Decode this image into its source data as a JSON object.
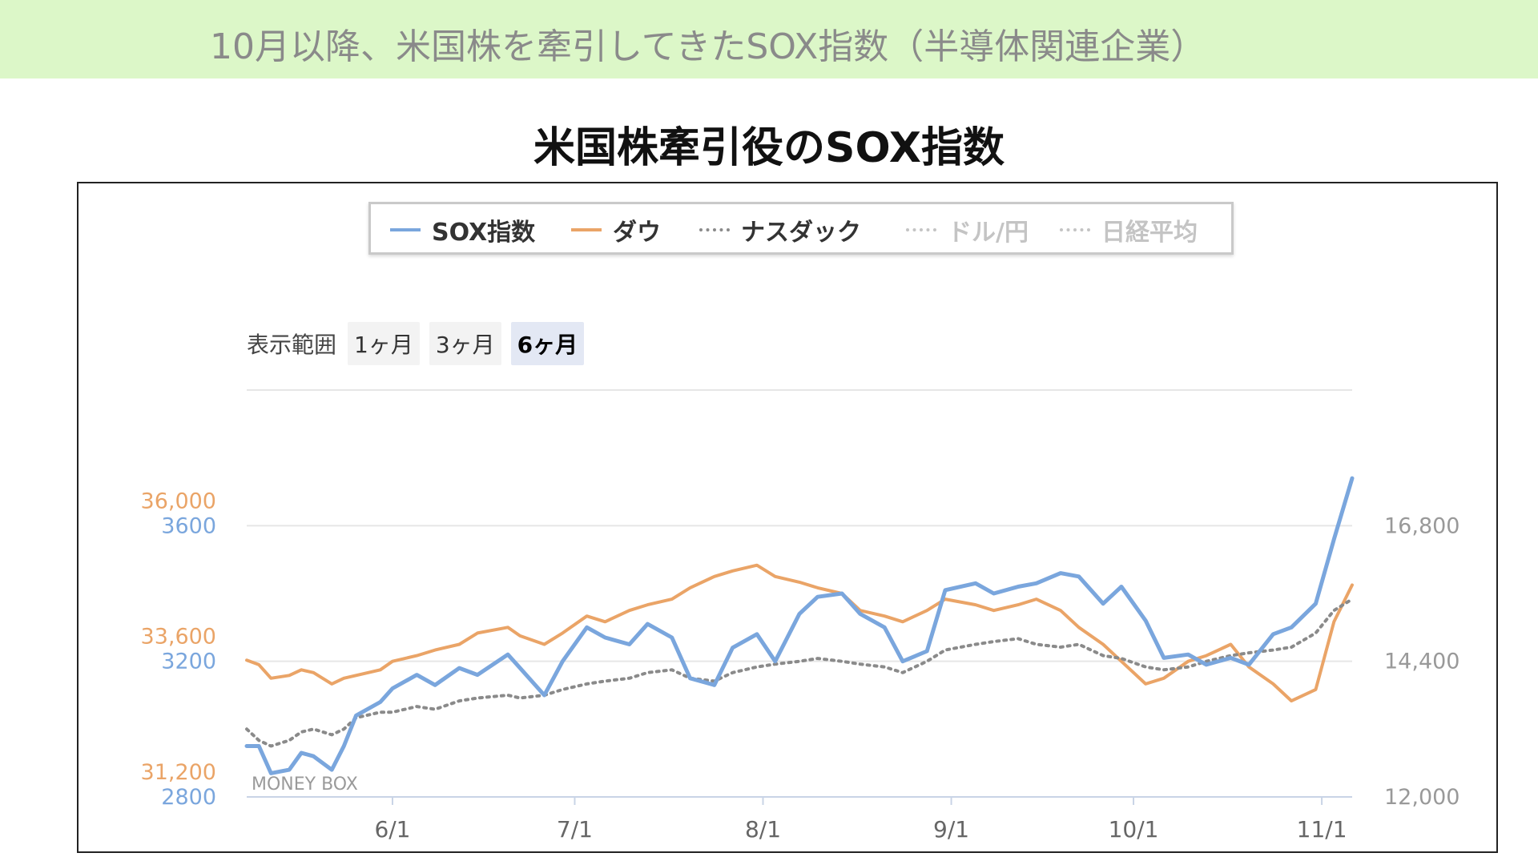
{
  "banner": {
    "text": "10月以降、米国株を牽引してきたSOX指数（半導体関連企業）"
  },
  "title": "米国株牽引役のSOX指数",
  "range_selector": {
    "label": "表示範囲",
    "buttons": [
      "1ヶ月",
      "3ヶ月",
      "6ヶ月"
    ],
    "selected": "6ヶ月"
  },
  "watermark": "MONEY BOX",
  "colors": {
    "sox": "#7aa6dd",
    "dow": "#eaa467",
    "nasdaq": "#8a8a8a",
    "disabled": "#bdbdbd",
    "banner_bg": "#dcf7c8"
  },
  "chart_data": {
    "type": "line",
    "legend": [
      {
        "name": "SOX指数",
        "style": "solid",
        "enabled": true
      },
      {
        "name": "ダウ",
        "style": "solid",
        "enabled": true
      },
      {
        "name": "ナスダック",
        "style": "dotted",
        "enabled": true
      },
      {
        "name": "ドル/円",
        "style": "dotted",
        "enabled": false
      },
      {
        "name": "日経平均",
        "style": "dotted",
        "enabled": false
      }
    ],
    "legend_position": "top-center",
    "x_range": [
      "2023-05-08",
      "2023-11-06"
    ],
    "x_ticks": [
      {
        "date": "2023-06-01",
        "label": "6/1"
      },
      {
        "date": "2023-07-01",
        "label": "7/1"
      },
      {
        "date": "2023-08-01",
        "label": "8/1"
      },
      {
        "date": "2023-09-01",
        "label": "9/1"
      },
      {
        "date": "2023-10-01",
        "label": "10/1"
      },
      {
        "date": "2023-11-01",
        "label": "11/1"
      }
    ],
    "y_axes": {
      "sox": {
        "ticks": [
          2800,
          3200,
          3600
        ],
        "range": [
          2800,
          4000
        ]
      },
      "dow": {
        "ticks": [
          "31,200",
          "33,600",
          "36,000"
        ],
        "range": [
          31200,
          38400
        ]
      },
      "nasdaq": {
        "ticks": [
          "12,000",
          "14,400",
          "16,800"
        ],
        "range": [
          12000,
          19200
        ]
      }
    },
    "grid": true,
    "series": [
      {
        "name": "SOX指数",
        "points": [
          [
            "2023-05-08",
            2950
          ],
          [
            "2023-05-10",
            2950
          ],
          [
            "2023-05-12",
            2870
          ],
          [
            "2023-05-15",
            2880
          ],
          [
            "2023-05-17",
            2930
          ],
          [
            "2023-05-19",
            2920
          ],
          [
            "2023-05-22",
            2880
          ],
          [
            "2023-05-24",
            2950
          ],
          [
            "2023-05-26",
            3040
          ],
          [
            "2023-05-30",
            3080
          ],
          [
            "2023-06-01",
            3120
          ],
          [
            "2023-06-05",
            3160
          ],
          [
            "2023-06-08",
            3130
          ],
          [
            "2023-06-12",
            3180
          ],
          [
            "2023-06-15",
            3160
          ],
          [
            "2023-06-20",
            3220
          ],
          [
            "2023-06-22",
            3180
          ],
          [
            "2023-06-26",
            3100
          ],
          [
            "2023-06-29",
            3200
          ],
          [
            "2023-07-03",
            3300
          ],
          [
            "2023-07-06",
            3270
          ],
          [
            "2023-07-10",
            3250
          ],
          [
            "2023-07-13",
            3310
          ],
          [
            "2023-07-17",
            3270
          ],
          [
            "2023-07-20",
            3150
          ],
          [
            "2023-07-24",
            3130
          ],
          [
            "2023-07-27",
            3240
          ],
          [
            "2023-07-31",
            3280
          ],
          [
            "2023-08-03",
            3200
          ],
          [
            "2023-08-07",
            3340
          ],
          [
            "2023-08-10",
            3390
          ],
          [
            "2023-08-14",
            3400
          ],
          [
            "2023-08-17",
            3340
          ],
          [
            "2023-08-21",
            3300
          ],
          [
            "2023-08-24",
            3200
          ],
          [
            "2023-08-28",
            3230
          ],
          [
            "2023-08-31",
            3410
          ],
          [
            "2023-09-05",
            3430
          ],
          [
            "2023-09-08",
            3400
          ],
          [
            "2023-09-12",
            3420
          ],
          [
            "2023-09-15",
            3430
          ],
          [
            "2023-09-19",
            3460
          ],
          [
            "2023-09-22",
            3450
          ],
          [
            "2023-09-26",
            3370
          ],
          [
            "2023-09-29",
            3420
          ],
          [
            "2023-10-03",
            3320
          ],
          [
            "2023-10-06",
            3210
          ],
          [
            "2023-10-10",
            3220
          ],
          [
            "2023-10-13",
            3190
          ],
          [
            "2023-10-17",
            3210
          ],
          [
            "2023-10-20",
            3190
          ],
          [
            "2023-10-24",
            3280
          ],
          [
            "2023-10-27",
            3300
          ],
          [
            "2023-10-31",
            3370
          ],
          [
            "2023-11-03",
            3560
          ],
          [
            "2023-11-06",
            3740
          ]
        ]
      },
      {
        "name": "ダウ",
        "points": [
          [
            "2023-05-08",
            33620
          ],
          [
            "2023-05-10",
            33540
          ],
          [
            "2023-05-12",
            33300
          ],
          [
            "2023-05-15",
            33350
          ],
          [
            "2023-05-17",
            33450
          ],
          [
            "2023-05-19",
            33400
          ],
          [
            "2023-05-22",
            33200
          ],
          [
            "2023-05-24",
            33300
          ],
          [
            "2023-05-26",
            33350
          ],
          [
            "2023-05-30",
            33450
          ],
          [
            "2023-06-01",
            33600
          ],
          [
            "2023-06-05",
            33700
          ],
          [
            "2023-06-08",
            33800
          ],
          [
            "2023-06-12",
            33900
          ],
          [
            "2023-06-15",
            34100
          ],
          [
            "2023-06-20",
            34200
          ],
          [
            "2023-06-22",
            34050
          ],
          [
            "2023-06-26",
            33900
          ],
          [
            "2023-06-29",
            34100
          ],
          [
            "2023-07-03",
            34400
          ],
          [
            "2023-07-06",
            34300
          ],
          [
            "2023-07-10",
            34500
          ],
          [
            "2023-07-13",
            34600
          ],
          [
            "2023-07-17",
            34700
          ],
          [
            "2023-07-20",
            34900
          ],
          [
            "2023-07-24",
            35100
          ],
          [
            "2023-07-27",
            35200
          ],
          [
            "2023-07-31",
            35300
          ],
          [
            "2023-08-03",
            35100
          ],
          [
            "2023-08-07",
            35000
          ],
          [
            "2023-08-10",
            34900
          ],
          [
            "2023-08-14",
            34800
          ],
          [
            "2023-08-17",
            34500
          ],
          [
            "2023-08-21",
            34400
          ],
          [
            "2023-08-24",
            34300
          ],
          [
            "2023-08-28",
            34500
          ],
          [
            "2023-08-31",
            34700
          ],
          [
            "2023-09-05",
            34600
          ],
          [
            "2023-09-08",
            34500
          ],
          [
            "2023-09-12",
            34600
          ],
          [
            "2023-09-15",
            34700
          ],
          [
            "2023-09-19",
            34500
          ],
          [
            "2023-09-22",
            34200
          ],
          [
            "2023-09-26",
            33900
          ],
          [
            "2023-09-29",
            33600
          ],
          [
            "2023-10-03",
            33200
          ],
          [
            "2023-10-06",
            33300
          ],
          [
            "2023-10-10",
            33600
          ],
          [
            "2023-10-13",
            33700
          ],
          [
            "2023-10-17",
            33900
          ],
          [
            "2023-10-20",
            33500
          ],
          [
            "2023-10-24",
            33200
          ],
          [
            "2023-10-27",
            32900
          ],
          [
            "2023-10-31",
            33100
          ],
          [
            "2023-11-03",
            34300
          ],
          [
            "2023-11-06",
            34950
          ]
        ]
      },
      {
        "name": "ナスダック",
        "points": [
          [
            "2023-05-08",
            13200
          ],
          [
            "2023-05-10",
            13000
          ],
          [
            "2023-05-12",
            12900
          ],
          [
            "2023-05-15",
            13000
          ],
          [
            "2023-05-17",
            13150
          ],
          [
            "2023-05-19",
            13200
          ],
          [
            "2023-05-22",
            13100
          ],
          [
            "2023-05-24",
            13200
          ],
          [
            "2023-05-26",
            13400
          ],
          [
            "2023-05-30",
            13500
          ],
          [
            "2023-06-01",
            13500
          ],
          [
            "2023-06-05",
            13600
          ],
          [
            "2023-06-08",
            13550
          ],
          [
            "2023-06-12",
            13700
          ],
          [
            "2023-06-15",
            13750
          ],
          [
            "2023-06-20",
            13800
          ],
          [
            "2023-06-22",
            13750
          ],
          [
            "2023-06-26",
            13800
          ],
          [
            "2023-06-29",
            13900
          ],
          [
            "2023-07-03",
            14000
          ],
          [
            "2023-07-06",
            14050
          ],
          [
            "2023-07-10",
            14100
          ],
          [
            "2023-07-13",
            14200
          ],
          [
            "2023-07-17",
            14250
          ],
          [
            "2023-07-20",
            14100
          ],
          [
            "2023-07-24",
            14050
          ],
          [
            "2023-07-27",
            14200
          ],
          [
            "2023-07-31",
            14300
          ],
          [
            "2023-08-03",
            14350
          ],
          [
            "2023-08-07",
            14400
          ],
          [
            "2023-08-10",
            14450
          ],
          [
            "2023-08-14",
            14400
          ],
          [
            "2023-08-17",
            14350
          ],
          [
            "2023-08-21",
            14300
          ],
          [
            "2023-08-24",
            14200
          ],
          [
            "2023-08-28",
            14400
          ],
          [
            "2023-08-31",
            14600
          ],
          [
            "2023-09-05",
            14700
          ],
          [
            "2023-09-08",
            14750
          ],
          [
            "2023-09-12",
            14800
          ],
          [
            "2023-09-15",
            14700
          ],
          [
            "2023-09-19",
            14650
          ],
          [
            "2023-09-22",
            14700
          ],
          [
            "2023-09-26",
            14500
          ],
          [
            "2023-09-29",
            14450
          ],
          [
            "2023-10-03",
            14300
          ],
          [
            "2023-10-06",
            14250
          ],
          [
            "2023-10-10",
            14300
          ],
          [
            "2023-10-13",
            14400
          ],
          [
            "2023-10-17",
            14500
          ],
          [
            "2023-10-20",
            14550
          ],
          [
            "2023-10-24",
            14600
          ],
          [
            "2023-10-27",
            14650
          ],
          [
            "2023-10-31",
            14900
          ],
          [
            "2023-11-03",
            15300
          ],
          [
            "2023-11-06",
            15500
          ]
        ]
      }
    ]
  }
}
